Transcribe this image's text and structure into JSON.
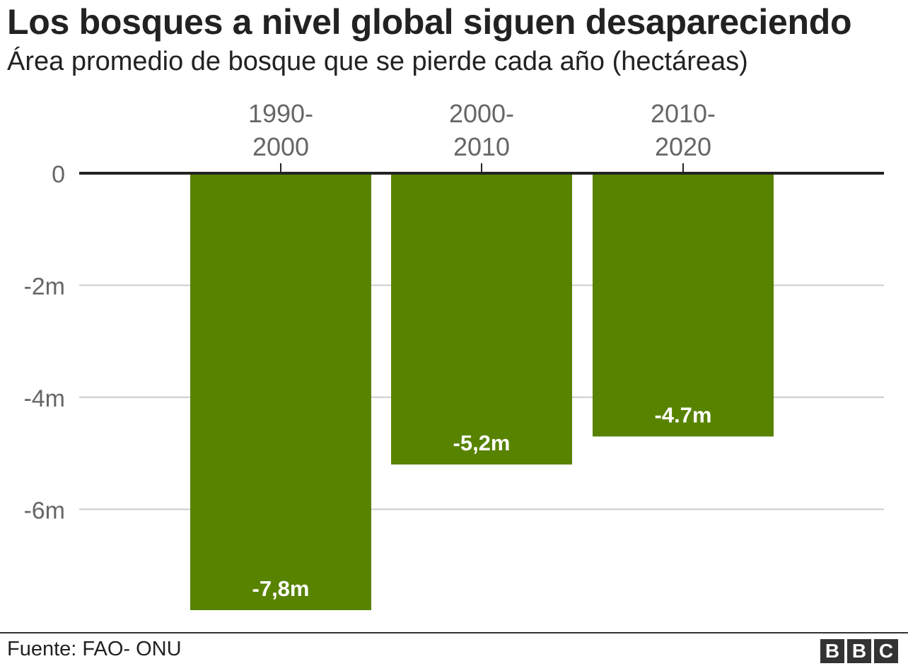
{
  "header": {
    "title": "Los bosques a nivel global siguen desapareciendo",
    "subtitle": "Área promedio de bosque que se pierde cada año (hectáreas)"
  },
  "chart_data": {
    "type": "bar",
    "title": "Los bosques a nivel global siguen desapareciendo",
    "subtitle": "Área promedio de bosque que se pierde cada año (hectáreas)",
    "categories": [
      [
        "1990-",
        "2000"
      ],
      [
        "2000-",
        "2010"
      ],
      [
        "2010-",
        "2020"
      ]
    ],
    "values": [
      -7.8,
      -5.2,
      -4.7
    ],
    "data_labels": [
      "-7,8m",
      "-5,2m",
      "-4.7m"
    ],
    "y_ticks": [
      {
        "value": 0,
        "label": "0"
      },
      {
        "value": -2,
        "label": "-2m"
      },
      {
        "value": -4,
        "label": "-4m"
      },
      {
        "value": -6,
        "label": "-6m"
      }
    ],
    "ylim": [
      -7.8,
      0
    ],
    "category_axis_position": "top",
    "grid": true,
    "colors": {
      "bar": "#588300",
      "grid": "#cccccc",
      "axis": "#222222",
      "tick_text": "#666666",
      "label_text": "#ffffff"
    }
  },
  "footer": {
    "source": "Fuente: FAO- ONU",
    "logo_letters": [
      "B",
      "B",
      "C"
    ]
  }
}
